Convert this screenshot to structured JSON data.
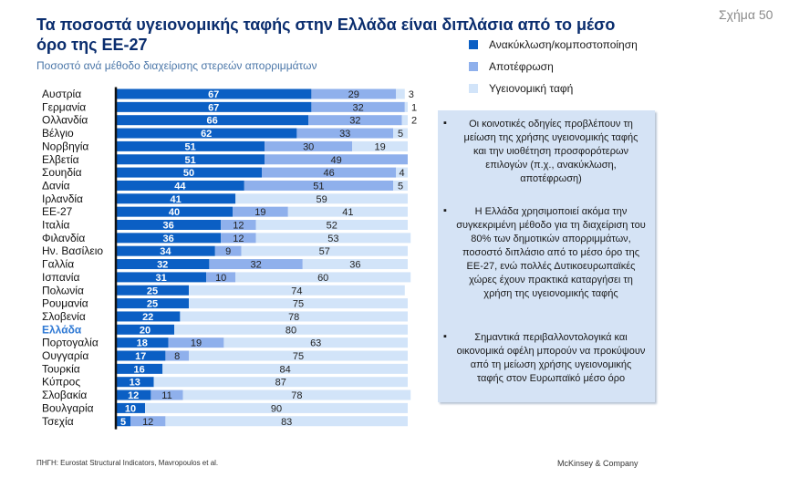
{
  "header": {
    "title_line1": "Τα ποσοστά υγειονομικής ταφής στην Ελλάδα είναι διπλάσια από το μέσο",
    "title_line2": "όρο της ΕΕ-27",
    "subtitle": "Ποσοστό ανά μέθοδο διαχείρισης στερεών απορριμμάτων",
    "figure_label": "Σχήμα 50"
  },
  "notes": [
    "Οι κοινοτικές οδηγίες προβλέπουν τη μείωση της χρήσης υγειονομικής ταφής και την υιοθέτηση προσφορότερων επιλογών (π.χ., ανακύκλωση, αποτέφρωση)",
    "Η Ελλάδα χρησιμοποιεί ακόμα την συγκεκριμένη μέθοδο για τη διαχείριση του 80% των δημοτικών απορριμμάτων, ποσοστό διπλάσιο από το μέσο όρο της ΕΕ-27, ενώ πολλές Δυτικοευρωπαϊκές χώρες έχουν πρακτικά καταργήσει τη χρήση της υγειονομικής ταφής",
    "Σημαντικά περιβαλλοντολογικά και οικονομικά οφέλη μπορούν να προκύψουν από τη μείωση χρήσης υγειονομικής ταφής στον Ευρωπαϊκό μέσο όρο"
  ],
  "footer": {
    "source": "ΠΗΓΗ: Eurostat Structural Indicators, Mavropoulos et al.",
    "brand": "McKinsey & Company"
  },
  "chart_data": {
    "type": "bar",
    "orientation": "horizontal",
    "stacked": true,
    "percent": true,
    "categories": [
      "Αυστρία",
      "Γερμανία",
      "Ολλανδία",
      "Βέλγιο",
      "Νορβηγία",
      "Ελβετία",
      "Σουηδία",
      "Δανία",
      "Ιρλανδία",
      "ΕΕ-27",
      "Ιταλία",
      "Φιλανδία",
      "Ην. Βασίλειο",
      "Γαλλία",
      "Ισπανία",
      "Πολωνία",
      "Ρουμανία",
      "Σλοβενία",
      "Ελλάδα",
      "Πορτογαλία",
      "Ουγγαρία",
      "Τουρκία",
      "Κύπρος",
      "Σλοβακία",
      "Βουλγαρία",
      "Τσεχία"
    ],
    "highlight_category": "Ελλάδα",
    "series": [
      {
        "name": "Ανακύκλωση/κομποστοποίηση",
        "color": "#0b5fc4",
        "values": [
          67,
          67,
          66,
          62,
          51,
          51,
          50,
          44,
          41,
          40,
          36,
          36,
          34,
          32,
          31,
          25,
          25,
          22,
          20,
          18,
          17,
          16,
          13,
          12,
          10,
          5
        ]
      },
      {
        "name": "Αποτέφρωση",
        "color": "#8fb0ec",
        "values": [
          29,
          32,
          32,
          33,
          30,
          49,
          46,
          51,
          0,
          19,
          12,
          12,
          9,
          32,
          10,
          0,
          0,
          0,
          0,
          19,
          8,
          0,
          0,
          11,
          0,
          12
        ]
      },
      {
        "name": "Υγειονομική ταφή",
        "color": "#d2e4f9",
        "values": [
          3,
          1,
          2,
          5,
          19,
          0,
          4,
          5,
          59,
          41,
          52,
          53,
          57,
          36,
          60,
          74,
          75,
          78,
          80,
          63,
          75,
          84,
          87,
          78,
          90,
          83
        ]
      }
    ],
    "legend_position": "top-right",
    "grid": false
  }
}
